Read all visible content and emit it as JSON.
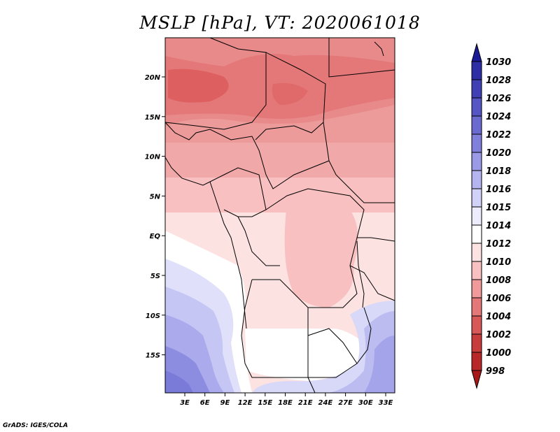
{
  "title": "MSLP [hPa], VT: 2020061018",
  "credit": "GrADS: IGES/COLA",
  "lat_labels": [
    "20N",
    "15N",
    "10N",
    "5N",
    "EQ",
    "5S",
    "10S",
    "15S"
  ],
  "lon_labels": [
    "3E",
    "6E",
    "9E",
    "12E",
    "15E",
    "18E",
    "21E",
    "24E",
    "27E",
    "30E",
    "33E"
  ],
  "colorbar": {
    "labels": [
      "1030",
      "1028",
      "1026",
      "1024",
      "1022",
      "1020",
      "1018",
      "1016",
      "1015",
      "1014",
      "1012",
      "1010",
      "1008",
      "1006",
      "1004",
      "1002",
      "1000",
      "998"
    ],
    "colors": [
      "#1a1a96",
      "#2d2da5",
      "#4040b4",
      "#5555c3",
      "#6a6ad0",
      "#8080dc",
      "#9a9ae6",
      "#b4b4f0",
      "#d2d2f8",
      "#ececfc",
      "#ffffff",
      "#fde2e2",
      "#f8c0c0",
      "#f09a9a",
      "#e47878",
      "#d85858",
      "#c83c3c",
      "#b82828",
      "#a81818"
    ]
  }
}
